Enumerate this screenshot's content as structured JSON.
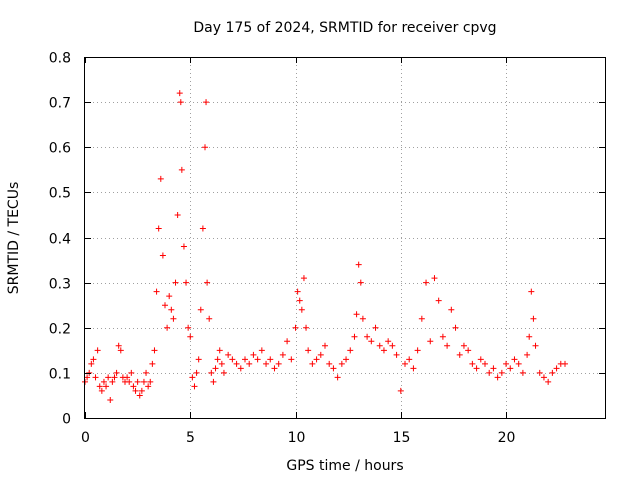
{
  "chart_data": {
    "type": "scatter",
    "title": "Day 175 of 2024, SRMTID for receiver cpvg",
    "xlabel": "GPS time / hours",
    "ylabel": "SRMTID / TECUs",
    "xlim": [
      0,
      24.7
    ],
    "ylim": [
      0,
      0.8
    ],
    "x_ticks": [
      0,
      5,
      10,
      15,
      20
    ],
    "x_tick_labels": [
      "0",
      "5",
      "10",
      "15",
      "20"
    ],
    "y_ticks": [
      0,
      0.1,
      0.2,
      0.3,
      0.4,
      0.5,
      0.6,
      0.7,
      0.8
    ],
    "y_tick_labels": [
      "0",
      "0.1",
      "0.2",
      "0.3",
      "0.4",
      "0.5",
      "0.6",
      "0.7",
      "0.8"
    ],
    "grid": true,
    "legend": "none",
    "marker": "+",
    "color": "#ff0000",
    "series": [
      {
        "name": "SRMTID",
        "points": [
          [
            0.0,
            0.08
          ],
          [
            0.1,
            0.09
          ],
          [
            0.2,
            0.1
          ],
          [
            0.3,
            0.12
          ],
          [
            0.4,
            0.13
          ],
          [
            0.5,
            0.09
          ],
          [
            0.6,
            0.15
          ],
          [
            0.7,
            0.07
          ],
          [
            0.8,
            0.06
          ],
          [
            0.9,
            0.08
          ],
          [
            1.0,
            0.07
          ],
          [
            1.1,
            0.09
          ],
          [
            1.2,
            0.04
          ],
          [
            1.3,
            0.08
          ],
          [
            1.4,
            0.09
          ],
          [
            1.5,
            0.1
          ],
          [
            1.6,
            0.16
          ],
          [
            1.7,
            0.15
          ],
          [
            1.8,
            0.09
          ],
          [
            1.9,
            0.08
          ],
          [
            2.0,
            0.09
          ],
          [
            2.1,
            0.08
          ],
          [
            2.2,
            0.1
          ],
          [
            2.3,
            0.07
          ],
          [
            2.4,
            0.06
          ],
          [
            2.5,
            0.08
          ],
          [
            2.6,
            0.05
          ],
          [
            2.7,
            0.06
          ],
          [
            2.8,
            0.08
          ],
          [
            2.9,
            0.1
          ],
          [
            3.0,
            0.07
          ],
          [
            3.1,
            0.08
          ],
          [
            3.2,
            0.12
          ],
          [
            3.3,
            0.15
          ],
          [
            3.4,
            0.28
          ],
          [
            3.5,
            0.42
          ],
          [
            3.6,
            0.53
          ],
          [
            3.7,
            0.36
          ],
          [
            3.8,
            0.25
          ],
          [
            3.9,
            0.2
          ],
          [
            4.0,
            0.27
          ],
          [
            4.1,
            0.24
          ],
          [
            4.2,
            0.22
          ],
          [
            4.3,
            0.3
          ],
          [
            4.4,
            0.45
          ],
          [
            4.5,
            0.72
          ],
          [
            4.55,
            0.7
          ],
          [
            4.6,
            0.55
          ],
          [
            4.7,
            0.38
          ],
          [
            4.8,
            0.3
          ],
          [
            4.9,
            0.2
          ],
          [
            5.0,
            0.18
          ],
          [
            5.1,
            0.09
          ],
          [
            5.2,
            0.07
          ],
          [
            5.3,
            0.1
          ],
          [
            5.4,
            0.13
          ],
          [
            5.5,
            0.24
          ],
          [
            5.6,
            0.42
          ],
          [
            5.7,
            0.6
          ],
          [
            5.75,
            0.7
          ],
          [
            5.8,
            0.3
          ],
          [
            5.9,
            0.22
          ],
          [
            6.0,
            0.1
          ],
          [
            6.1,
            0.08
          ],
          [
            6.2,
            0.11
          ],
          [
            6.3,
            0.13
          ],
          [
            6.4,
            0.15
          ],
          [
            6.5,
            0.12
          ],
          [
            6.6,
            0.1
          ],
          [
            6.8,
            0.14
          ],
          [
            7.0,
            0.13
          ],
          [
            7.2,
            0.12
          ],
          [
            7.4,
            0.11
          ],
          [
            7.6,
            0.13
          ],
          [
            7.8,
            0.12
          ],
          [
            8.0,
            0.14
          ],
          [
            8.2,
            0.13
          ],
          [
            8.4,
            0.15
          ],
          [
            8.6,
            0.12
          ],
          [
            8.8,
            0.13
          ],
          [
            9.0,
            0.11
          ],
          [
            9.2,
            0.12
          ],
          [
            9.4,
            0.14
          ],
          [
            9.6,
            0.17
          ],
          [
            9.8,
            0.13
          ],
          [
            10.0,
            0.2
          ],
          [
            10.1,
            0.28
          ],
          [
            10.2,
            0.26
          ],
          [
            10.3,
            0.24
          ],
          [
            10.4,
            0.31
          ],
          [
            10.5,
            0.2
          ],
          [
            10.6,
            0.15
          ],
          [
            10.8,
            0.12
          ],
          [
            11.0,
            0.13
          ],
          [
            11.2,
            0.14
          ],
          [
            11.4,
            0.16
          ],
          [
            11.6,
            0.12
          ],
          [
            11.8,
            0.11
          ],
          [
            12.0,
            0.09
          ],
          [
            12.2,
            0.12
          ],
          [
            12.4,
            0.13
          ],
          [
            12.6,
            0.15
          ],
          [
            12.8,
            0.18
          ],
          [
            12.9,
            0.23
          ],
          [
            13.0,
            0.34
          ],
          [
            13.1,
            0.3
          ],
          [
            13.2,
            0.22
          ],
          [
            13.4,
            0.18
          ],
          [
            13.6,
            0.17
          ],
          [
            13.8,
            0.2
          ],
          [
            14.0,
            0.16
          ],
          [
            14.2,
            0.15
          ],
          [
            14.4,
            0.17
          ],
          [
            14.6,
            0.16
          ],
          [
            14.8,
            0.14
          ],
          [
            15.0,
            0.06
          ],
          [
            15.2,
            0.12
          ],
          [
            15.4,
            0.13
          ],
          [
            15.6,
            0.11
          ],
          [
            15.8,
            0.15
          ],
          [
            16.0,
            0.22
          ],
          [
            16.2,
            0.3
          ],
          [
            16.4,
            0.17
          ],
          [
            16.6,
            0.31
          ],
          [
            16.8,
            0.26
          ],
          [
            17.0,
            0.18
          ],
          [
            17.2,
            0.16
          ],
          [
            17.4,
            0.24
          ],
          [
            17.6,
            0.2
          ],
          [
            17.8,
            0.14
          ],
          [
            18.0,
            0.16
          ],
          [
            18.2,
            0.15
          ],
          [
            18.4,
            0.12
          ],
          [
            18.6,
            0.11
          ],
          [
            18.8,
            0.13
          ],
          [
            19.0,
            0.12
          ],
          [
            19.2,
            0.1
          ],
          [
            19.4,
            0.11
          ],
          [
            19.6,
            0.09
          ],
          [
            19.8,
            0.1
          ],
          [
            20.0,
            0.12
          ],
          [
            20.2,
            0.11
          ],
          [
            20.4,
            0.13
          ],
          [
            20.6,
            0.12
          ],
          [
            20.8,
            0.1
          ],
          [
            21.0,
            0.14
          ],
          [
            21.1,
            0.18
          ],
          [
            21.2,
            0.28
          ],
          [
            21.3,
            0.22
          ],
          [
            21.4,
            0.16
          ],
          [
            21.6,
            0.1
          ],
          [
            21.8,
            0.09
          ],
          [
            22.0,
            0.08
          ],
          [
            22.2,
            0.1
          ],
          [
            22.4,
            0.11
          ],
          [
            22.6,
            0.12
          ],
          [
            22.8,
            0.12
          ]
        ]
      }
    ]
  }
}
